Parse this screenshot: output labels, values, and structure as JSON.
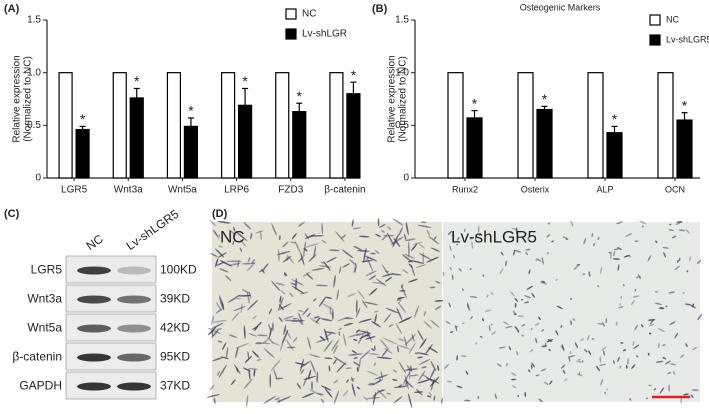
{
  "panel_labels": [
    "(A)",
    "(B)",
    "(C)",
    "(D)"
  ],
  "chart_data": [
    {
      "type": "bar",
      "y_label": [
        "Relative expression",
        "(Normalized to NC)"
      ],
      "categories": [
        "LGR5",
        "Wnt3a",
        "Wnt5a",
        "LRP6",
        "FZD3",
        "β-catenin"
      ],
      "series": [
        {
          "name": "NC",
          "color": "#ffffff",
          "values": [
            1,
            1,
            1,
            1,
            1,
            1
          ]
        },
        {
          "name": "Lv-shLGR",
          "color": "#000000",
          "values": [
            0.46,
            0.76,
            0.49,
            0.69,
            0.63,
            0.8
          ],
          "errors": [
            0.03,
            0.09,
            0.08,
            0.16,
            0.08,
            0.11
          ],
          "markers": [
            "*",
            "*",
            "*",
            "*",
            "*",
            "*"
          ]
        }
      ],
      "ylim": [
        0,
        1.5
      ],
      "yticks": [
        0,
        0.5,
        {
          "value": 1,
          "label": "1.0"
        },
        1.5
      ]
    },
    {
      "type": "bar",
      "title": "Osteogenic Markers",
      "y_label": [
        "Relative expression",
        "(Normalized to NC)"
      ],
      "categories": [
        "Runx2",
        "Osterix",
        "ALP",
        "OCN"
      ],
      "series": [
        {
          "name": "NC",
          "color": "#ffffff",
          "values": [
            1,
            1,
            1,
            1
          ]
        },
        {
          "name": "Lv-shLGR5",
          "color": "#000000",
          "values": [
            0.57,
            0.65,
            0.43,
            0.55
          ],
          "errors": [
            0.07,
            0.03,
            0.06,
            0.07
          ],
          "markers": [
            "*",
            "*",
            "*",
            "*"
          ]
        }
      ],
      "ylim": [
        0,
        1.5
      ],
      "yticks": [
        0,
        0.5,
        {
          "value": 1,
          "label": "1.0"
        },
        1.5
      ]
    }
  ],
  "blot": {
    "lanes": [
      "NC",
      "Lv-shLGR5"
    ],
    "rows": [
      {
        "protein": "LGR5",
        "size": "100KD"
      },
      {
        "protein": "Wnt3a",
        "size": "39KD"
      },
      {
        "protein": "Wnt5a",
        "size": "42KD"
      },
      {
        "protein": "β-catenin",
        "size": "95KD"
      },
      {
        "protein": "GAPDH",
        "size": "37KD"
      }
    ]
  },
  "images": [
    {
      "label": "NC"
    },
    {
      "label": "Lv-shLGR5"
    }
  ]
}
